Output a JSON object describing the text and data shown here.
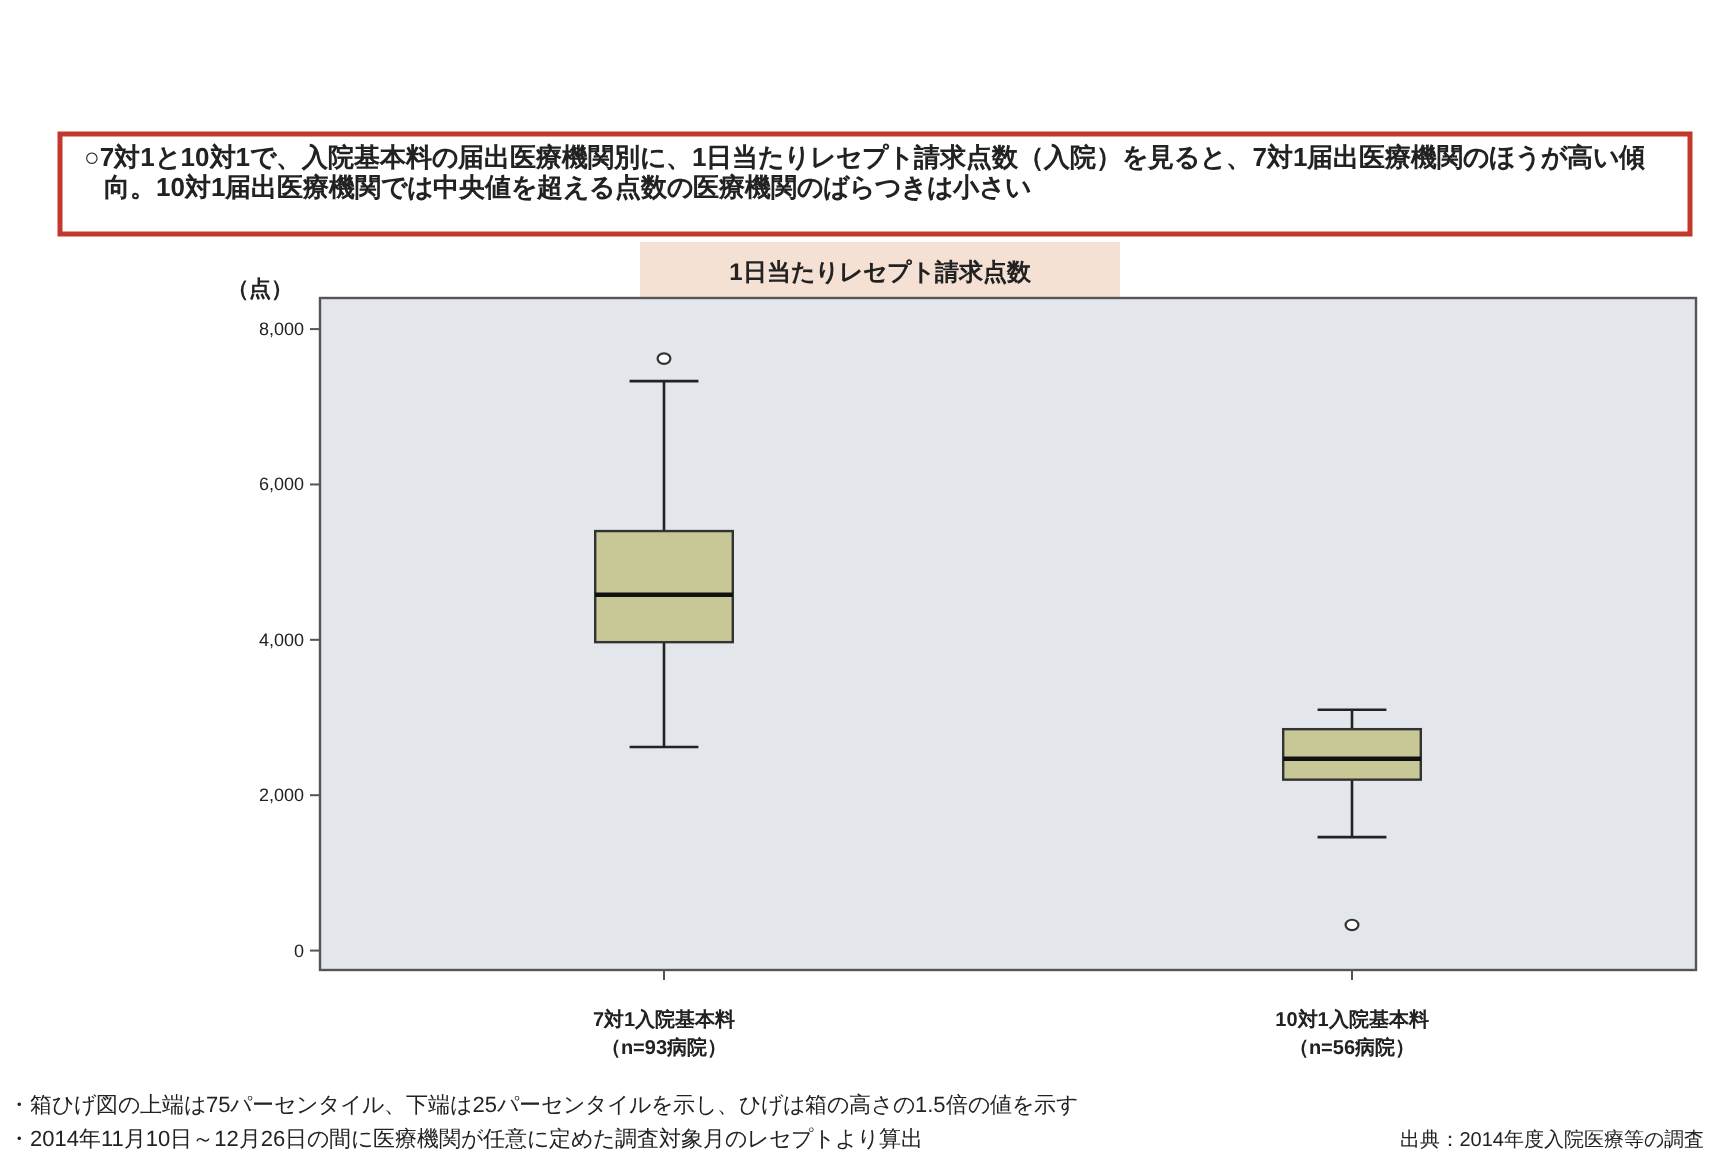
{
  "chart_data": {
    "type": "box",
    "title": "○7対1と10対1で、入院基本料の届出医療機関別に、1日当たりレセプト請求点数（入院）を見ると、7対1届出医療機関のほうが高い傾向。10対1届出医療機関では中央値を超える点数の医療機関のばらつきは小さい",
    "subtitle": "1日当たりレセプト請求点数",
    "ylabel": "（点）",
    "categories": [
      "7対1入院基本料（n=93病院）",
      "10対1入院基本料（n=56病院）"
    ],
    "boxes": [
      {
        "low": 2620,
        "q1": 3970,
        "median": 4580,
        "q3": 5400,
        "high": 7330,
        "outliers": [
          7620
        ]
      },
      {
        "low": 1460,
        "q1": 2200,
        "median": 2470,
        "q3": 2850,
        "high": 3100,
        "outliers": [
          330
        ]
      }
    ],
    "color": "#c8c896",
    "ylim": [
      -250,
      8400
    ],
    "yticks": [
      {
        "value": 0,
        "label": "0"
      },
      {
        "value": 2000,
        "label": "2,000"
      },
      {
        "value": 4000,
        "label": "4,000"
      },
      {
        "value": 6000,
        "label": "6,000"
      },
      {
        "value": 8000,
        "label": "8,000"
      }
    ],
    "grid": false,
    "annotations": [
      "・箱ひげ図の上端は75パーセンタイル、下端は25パーセンタイルを示し、ひげは箱の高さの1.5倍の値を示す",
      "・2014年11月10日～12月26日の間に医療機関が任意に定めた調査対象月のレセプトより算出",
      "出典：2014年度入院医療等の調査"
    ]
  }
}
